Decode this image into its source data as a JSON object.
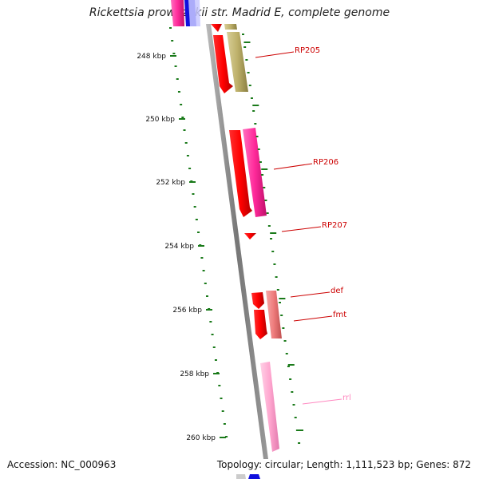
{
  "title": "Rickettsia prowazekii str. Madrid E, complete genome",
  "accession": "Accession: NC_000963",
  "stats": "Topology: circular; Length: 1,111,523 bp; Genes: 872",
  "ticks": [
    {
      "label": "248 kbp"
    },
    {
      "label": "250 kbp"
    },
    {
      "label": "252 kbp"
    },
    {
      "label": "254 kbp"
    },
    {
      "label": "256 kbp"
    },
    {
      "label": "258 kbp"
    },
    {
      "label": "260 kbp"
    }
  ],
  "gene_labels": [
    {
      "name": "RP205",
      "color": "#cc0000"
    },
    {
      "name": "RP206",
      "color": "#cc0000"
    },
    {
      "name": "RP207",
      "color": "#cc0000"
    },
    {
      "name": "def",
      "color": "#cc0000"
    },
    {
      "name": "fmt",
      "color": "#cc0000"
    },
    {
      "name": "rrl",
      "color": "#ff88c0"
    }
  ],
  "colors": {
    "tick": "#1a7a1a",
    "backbone": "#888888",
    "red": "#ee0000",
    "pink": "#ff2a9a",
    "olive": "#bdb06a",
    "salmon": "#ee7b7b",
    "lightpink": "#ffa6cf",
    "blue": "#0000dd"
  }
}
